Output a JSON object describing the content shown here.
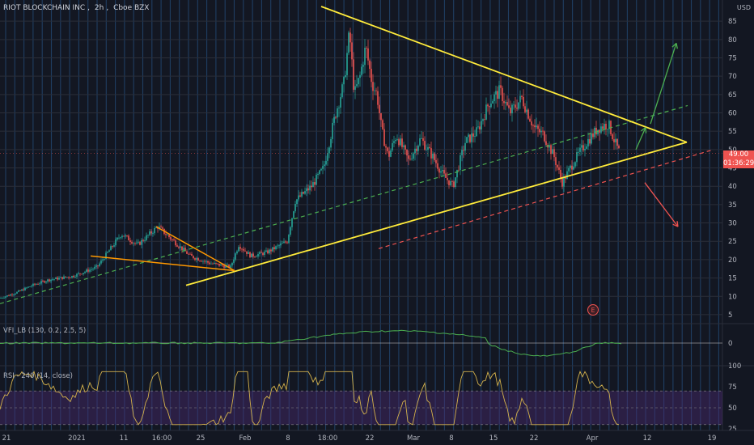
{
  "header": {
    "symbol": "RIOT BLOCKCHAIN INC",
    "interval": "2h",
    "exchange": "Cboe BZX",
    "currency": "USD"
  },
  "price_tag": {
    "price": "49.00",
    "countdown": "01:36:29",
    "color": "#ef5350"
  },
  "indicators": {
    "vfi": {
      "label": "VFI_LB (130, 0.2, 2.5, 5)",
      "axis_ticks": [
        "0"
      ]
    },
    "rsi": {
      "label": "RSI - 240 (14, close)",
      "axis_ticks": [
        "100",
        "75",
        "50",
        "25"
      ]
    }
  },
  "earnings_marker": "E",
  "colors": {
    "background": "#131722",
    "grid": "#2a5f97",
    "triangle": "#ffeb3b",
    "orange_lines": "#ff9800",
    "green_dashed": "#4caf50",
    "red_dashed": "#ef5350",
    "up_candle": "#26a69a",
    "down_candle": "#ef5350",
    "vfi_line": "#4caf50",
    "rsi_line": "#d4b24c",
    "rsi_band": "#4a2a6e"
  },
  "chart_data": {
    "type": "candlestick",
    "title": "RIOT BLOCKCHAIN INC, 2h, Cboe BZX",
    "ylabel": "USD",
    "ylim": [
      3,
      89
    ],
    "y_ticks": [
      5,
      10,
      15,
      20,
      25,
      30,
      35,
      40,
      45,
      50,
      55,
      60,
      65,
      70,
      75,
      80,
      85
    ],
    "x_ticks": [
      "21",
      "2021",
      "11",
      "16:00",
      "25",
      "Feb",
      "8",
      "18:00",
      "22",
      "Mar",
      "8",
      "15",
      "22",
      "Apr",
      "12",
      "19"
    ],
    "price_path": [
      [
        0,
        9.5
      ],
      [
        20,
        11
      ],
      [
        40,
        13
      ],
      [
        60,
        14.5
      ],
      [
        90,
        15.5
      ],
      [
        120,
        18
      ],
      [
        150,
        27
      ],
      [
        170,
        24
      ],
      [
        195,
        29
      ],
      [
        215,
        25
      ],
      [
        235,
        21
      ],
      [
        260,
        19
      ],
      [
        285,
        18
      ],
      [
        295,
        24
      ],
      [
        310,
        21
      ],
      [
        330,
        22
      ],
      [
        355,
        25
      ],
      [
        365,
        36
      ],
      [
        385,
        40
      ],
      [
        400,
        45
      ],
      [
        415,
        60
      ],
      [
        425,
        68
      ],
      [
        432,
        82
      ],
      [
        438,
        65
      ],
      [
        445,
        70
      ],
      [
        452,
        78
      ],
      [
        460,
        68
      ],
      [
        466,
        65
      ],
      [
        472,
        55
      ],
      [
        480,
        48
      ],
      [
        490,
        54
      ],
      [
        505,
        47
      ],
      [
        520,
        53
      ],
      [
        535,
        48
      ],
      [
        548,
        43
      ],
      [
        560,
        40
      ],
      [
        575,
        52
      ],
      [
        590,
        55
      ],
      [
        605,
        63
      ],
      [
        618,
        66
      ],
      [
        630,
        60
      ],
      [
        645,
        64
      ],
      [
        660,
        56
      ],
      [
        672,
        54
      ],
      [
        685,
        48
      ],
      [
        695,
        41
      ],
      [
        710,
        47
      ],
      [
        725,
        52
      ],
      [
        740,
        56
      ],
      [
        752,
        57
      ],
      [
        760,
        52
      ],
      [
        766,
        49
      ]
    ],
    "annotations": {
      "triangle_upper_line": [
        [
          397,
          89
        ],
        [
          849,
          52
        ]
      ],
      "triangle_lower_line": [
        [
          230,
          13
        ],
        [
          849,
          52
        ]
      ],
      "green_dashed_trend": [
        [
          0,
          8
        ],
        [
          850,
          62
        ]
      ],
      "red_dashed_trend": [
        [
          468,
          23
        ],
        [
          882,
          50
        ]
      ],
      "small_wedge_upper": [
        [
          193,
          29
        ],
        [
          290,
          17
        ]
      ],
      "small_wedge_lower": [
        [
          112,
          21
        ],
        [
          290,
          17
        ]
      ],
      "arrow_up_large": [
        [
          804,
          57
        ],
        [
          836,
          79
        ]
      ],
      "arrow_up_small": [
        [
          786,
          50
        ],
        [
          798,
          56
        ]
      ],
      "arrow_down": [
        [
          797,
          41
        ],
        [
          838,
          29
        ]
      ]
    },
    "last_price": 49.0,
    "grid": true
  }
}
